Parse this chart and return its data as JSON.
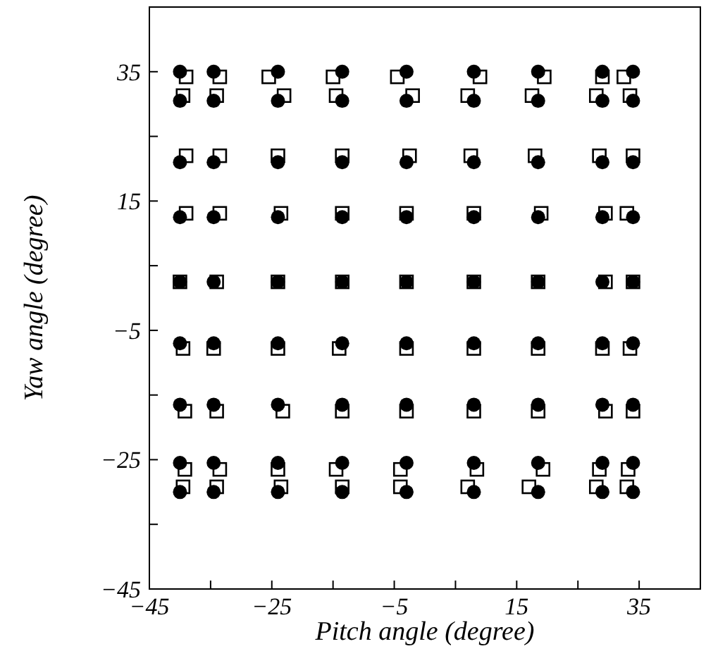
{
  "chart_data": {
    "type": "scatter",
    "xlabel": "Pitch angle (degree)",
    "ylabel": "Yaw angle (degree)",
    "xlim": [
      -45,
      45
    ],
    "ylim": [
      -45,
      45
    ],
    "xticks": [
      -45,
      {
        "value": -35,
        "label": null
      },
      -25,
      {
        "value": -15,
        "label": null
      },
      -5,
      {
        "value": 5,
        "label": null
      },
      15,
      {
        "value": 25,
        "label": null
      },
      35
    ],
    "yticks": [
      -45,
      {
        "value": -35,
        "label": null
      },
      -25,
      {
        "value": -15,
        "label": null
      },
      -5,
      {
        "value": 5,
        "label": null
      },
      15,
      {
        "value": 25,
        "label": null
      },
      35
    ],
    "grid": false,
    "series": [
      {
        "color": "#000000",
        "marker": "square",
        "x": [
          -39,
          -33.5,
          -25.5,
          -15,
          -4.5,
          9,
          19.5,
          29,
          32.5,
          -39.5,
          -34,
          -23,
          -14.5,
          -2,
          7,
          17.5,
          28,
          33.5,
          -39,
          -33.5,
          -24,
          -13.5,
          -2.5,
          7.5,
          18,
          28.5,
          34,
          -39,
          -33.5,
          -23.5,
          -13.5,
          -3,
          8,
          19,
          29.5,
          33,
          -40,
          -34,
          -24,
          -13.5,
          -3,
          8,
          18.5,
          29.5,
          34,
          -39.5,
          -34.5,
          -24,
          -14,
          -3,
          8,
          18.5,
          29,
          33.5,
          -39.2,
          -34,
          -23.2,
          -13.5,
          -3,
          8,
          18.5,
          29.5,
          34,
          -39.2,
          -33.5,
          -24,
          -14.5,
          -4,
          8.5,
          19.3,
          28.5,
          33.2,
          -39.5,
          -34,
          -23.5,
          -13.5,
          -4,
          7,
          17,
          28,
          33
        ],
        "values": [
          34.2,
          34.2,
          34.2,
          34.2,
          34.2,
          34.2,
          34.2,
          34.2,
          34.2,
          31.3,
          31.3,
          31.3,
          31.3,
          31.3,
          31.3,
          31.3,
          31.3,
          31.3,
          22,
          22,
          22,
          22,
          22,
          22,
          22,
          22,
          22,
          13.1,
          13.1,
          13.1,
          13.1,
          13.1,
          13.1,
          13.1,
          13.1,
          13.1,
          2.5,
          2.5,
          2.5,
          2.5,
          2.5,
          2.5,
          2.5,
          2.5,
          2.5,
          -7.8,
          -7.8,
          -7.8,
          -7.8,
          -7.8,
          -7.8,
          -7.8,
          -7.8,
          -7.8,
          -17.5,
          -17.5,
          -17.5,
          -17.5,
          -17.5,
          -17.5,
          -17.5,
          -17.5,
          -17.5,
          -26.5,
          -26.5,
          -26.5,
          -26.5,
          -26.5,
          -26.5,
          -26.5,
          -26.5,
          -26.5,
          -29.2,
          -29.2,
          -29.2,
          -29.2,
          -29.2,
          -29.2,
          -29.2,
          -29.2,
          -29.2
        ]
      },
      {
        "color": "#000000",
        "marker": "circle",
        "x": [
          -40,
          -34.5,
          -24,
          -13.5,
          -3,
          8,
          18.5,
          29,
          34,
          -40,
          -34.5,
          -24,
          -13.5,
          -3,
          8,
          18.5,
          29,
          34,
          -40,
          -34.5,
          -24,
          -13.5,
          -3,
          8,
          18.5,
          29,
          34,
          -40,
          -34.5,
          -24,
          -13.5,
          -3,
          8,
          18.5,
          29,
          34,
          -40,
          -34.5,
          -24,
          -13.5,
          -3,
          8,
          18.5,
          29,
          34,
          -40,
          -34.5,
          -24,
          -13.5,
          -3,
          8,
          18.5,
          29,
          34,
          -40,
          -34.5,
          -24,
          -13.5,
          -3,
          8,
          18.5,
          29,
          34,
          -40,
          -34.5,
          -24,
          -13.5,
          -3,
          8,
          18.5,
          29,
          34,
          -40,
          -34.5,
          -24,
          -13.5,
          -3,
          8,
          18.5,
          29,
          34
        ],
        "values": [
          35,
          35,
          35,
          35,
          35,
          35,
          35,
          35,
          35,
          30.5,
          30.5,
          30.5,
          30.5,
          30.5,
          30.5,
          30.5,
          30.5,
          30.5,
          21,
          21,
          21,
          21,
          21,
          21,
          21,
          21,
          21,
          12.5,
          12.5,
          12.5,
          12.5,
          12.5,
          12.5,
          12.5,
          12.5,
          12.5,
          2.5,
          2.5,
          2.5,
          2.5,
          2.5,
          2.5,
          2.5,
          2.5,
          2.5,
          -7,
          -7,
          -7,
          -7,
          -7,
          -7,
          -7,
          -7,
          -7,
          -16.5,
          -16.5,
          -16.5,
          -16.5,
          -16.5,
          -16.5,
          -16.5,
          -16.5,
          -16.5,
          -25.5,
          -25.5,
          -25.5,
          -25.5,
          -25.5,
          -25.5,
          -25.5,
          -25.5,
          -25.5,
          -30,
          -30,
          -30,
          -30,
          -30,
          -30,
          -30,
          -30,
          -30
        ]
      }
    ]
  }
}
